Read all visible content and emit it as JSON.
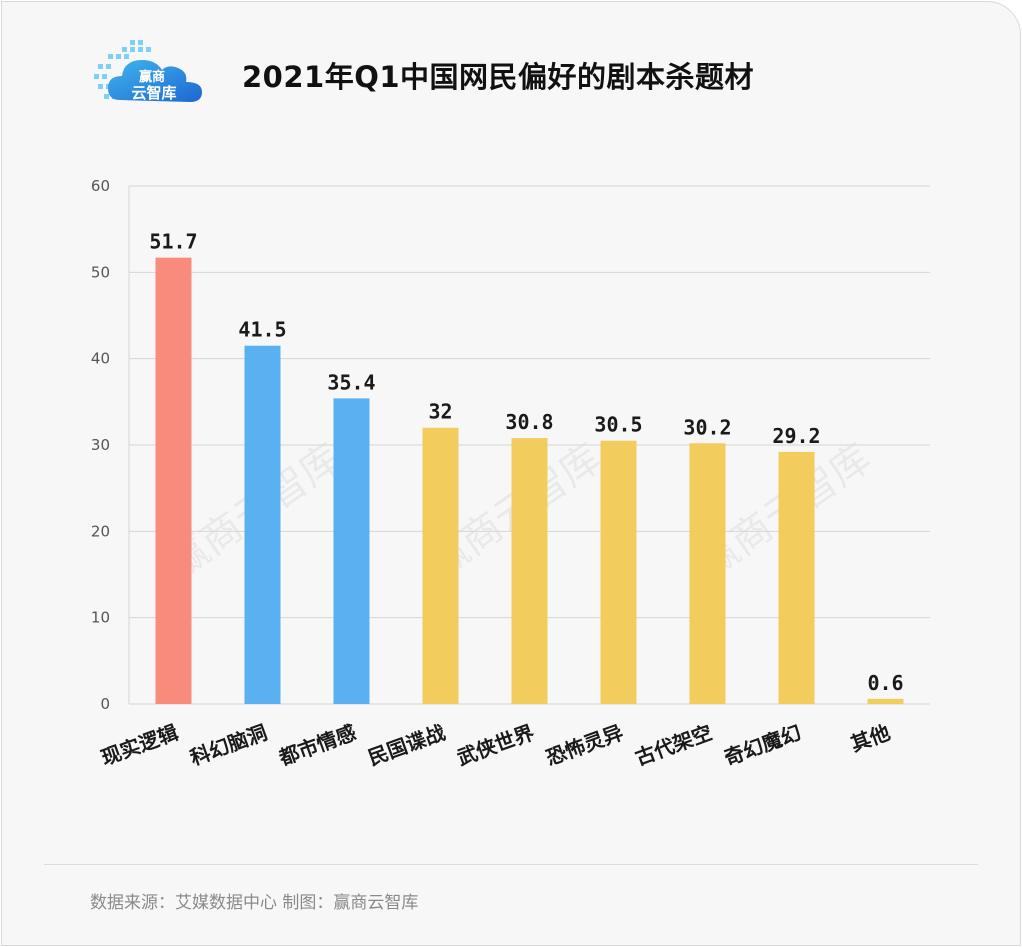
{
  "title": "2021年Q1中国网民偏好的剧本杀题材",
  "logo": {
    "text": "赢商\n云智库",
    "line1": "赢商",
    "line2": "云智库"
  },
  "watermark": "赢商云智库",
  "source": "数据来源：艾媒数据中心  制图：赢商云智库",
  "colors": {
    "red": "#f98b7d",
    "blue": "#5ab0f0",
    "yellow": "#f2cd5d"
  },
  "chart_data": {
    "type": "bar",
    "title": "2021年Q1中国网民偏好的剧本杀题材",
    "xlabel": "",
    "ylabel": "",
    "ylim": [
      0,
      60
    ],
    "yticks": [
      0,
      10,
      20,
      30,
      40,
      50,
      60
    ],
    "grid": true,
    "categories": [
      "现实逻辑",
      "科幻脑洞",
      "都市情感",
      "民国谍战",
      "武侠世界",
      "恐怖灵异",
      "古代架空",
      "奇幻魔幻",
      "其他"
    ],
    "values": [
      51.7,
      41.5,
      35.4,
      32,
      30.8,
      30.5,
      30.2,
      29.2,
      0.6
    ],
    "bar_colors": [
      "#f98b7d",
      "#5ab0f0",
      "#5ab0f0",
      "#f2cd5d",
      "#f2cd5d",
      "#f2cd5d",
      "#f2cd5d",
      "#f2cd5d",
      "#f2cd5d"
    ]
  }
}
